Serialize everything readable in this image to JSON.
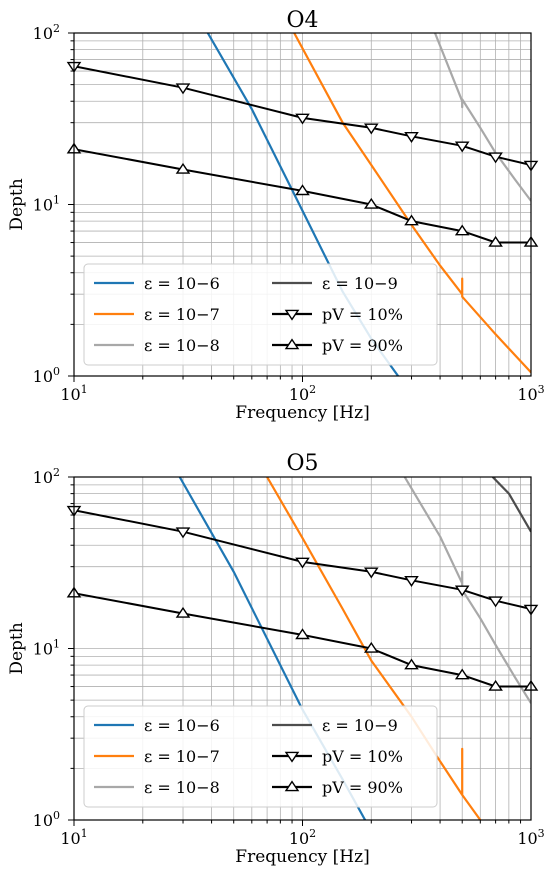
{
  "chart_data": [
    {
      "type": "line",
      "title": "O4",
      "xlabel": "Frequency [Hz]",
      "ylabel": "Depth",
      "xscale": "log",
      "yscale": "log",
      "xlim": [
        10,
        1000
      ],
      "ylim": [
        1,
        100
      ],
      "xticks": [
        {
          "base": "10",
          "exp": "1"
        },
        {
          "base": "10",
          "exp": "2"
        },
        {
          "base": "10",
          "exp": "3"
        }
      ],
      "yticks": [
        {
          "base": "10",
          "exp": "0"
        },
        {
          "base": "10",
          "exp": "1"
        },
        {
          "base": "10",
          "exp": "2"
        }
      ],
      "grid": true,
      "legend_position": "lower-left",
      "series": [
        {
          "name": "ε = 10−6",
          "color": "#1f77b4",
          "x": [
            38.5,
            60,
            100,
            150,
            200,
            262
          ],
          "y": [
            100,
            36,
            9.2,
            3.1,
            1.65,
            1.0
          ]
        },
        {
          "name": "ε = 10−7",
          "color": "#ff7f0e",
          "x": [
            92,
            150,
            200,
            300,
            400,
            500,
            500,
            500,
            700,
            1000
          ],
          "y": [
            100,
            30,
            17,
            7.6,
            4.4,
            3.0,
            3.7,
            2.9,
            1.75,
            1.05
          ]
        },
        {
          "name": "ε = 10−8",
          "color": "#a8a8a8",
          "x": [
            380,
            500,
            500,
            500,
            600,
            700,
            850,
            1000
          ],
          "y": [
            100,
            40,
            37,
            41,
            28,
            20,
            14,
            10.5
          ]
        },
        {
          "name": "ε = 10−9",
          "color": "#4d4d4d",
          "x": [],
          "y": []
        },
        {
          "name": "pV = 10%",
          "marker": "triangle-down",
          "color": "#000000",
          "x": [
            10,
            30,
            100,
            200,
            300,
            500,
            700,
            1000
          ],
          "y": [
            64,
            48,
            32,
            28,
            25,
            22,
            19,
            17
          ]
        },
        {
          "name": "pV = 90%",
          "marker": "triangle-up",
          "color": "#000000",
          "x": [
            10,
            30,
            100,
            200,
            300,
            500,
            700,
            1000
          ],
          "y": [
            21,
            16,
            12,
            10,
            8,
            7,
            6,
            6
          ]
        }
      ]
    },
    {
      "type": "line",
      "title": "O5",
      "xlabel": "Frequency [Hz]",
      "ylabel": "Depth",
      "xscale": "log",
      "yscale": "log",
      "xlim": [
        10,
        1000
      ],
      "ylim": [
        1,
        100
      ],
      "xticks": [
        {
          "base": "10",
          "exp": "1"
        },
        {
          "base": "10",
          "exp": "2"
        },
        {
          "base": "10",
          "exp": "3"
        }
      ],
      "yticks": [
        {
          "base": "10",
          "exp": "0"
        },
        {
          "base": "10",
          "exp": "1"
        },
        {
          "base": "10",
          "exp": "2"
        }
      ],
      "grid": true,
      "legend_position": "lower-left",
      "series": [
        {
          "name": "ε = 10−6",
          "color": "#1f77b4",
          "x": [
            29,
            50,
            100,
            150,
            188
          ],
          "y": [
            100,
            28,
            4.4,
            1.72,
            1.0
          ]
        },
        {
          "name": "ε = 10−7",
          "color": "#ff7f0e",
          "x": [
            70,
            100,
            150,
            200,
            300,
            400,
            500,
            500,
            500,
            600
          ],
          "y": [
            100,
            44,
            17,
            8.5,
            4.0,
            2.2,
            1.4,
            2.6,
            1.4,
            1.0
          ]
        },
        {
          "name": "ε = 10−8",
          "color": "#a8a8a8",
          "x": [
            280,
            400,
            500,
            500,
            500,
            600,
            700,
            850,
            1000
          ],
          "y": [
            100,
            45,
            24,
            28,
            22,
            15,
            10.5,
            6.8,
            4.8
          ]
        },
        {
          "name": "ε = 10−9",
          "color": "#4d4d4d",
          "x": [
            680,
            800,
            1000
          ],
          "y": [
            100,
            80,
            48
          ]
        },
        {
          "name": "pV = 10%",
          "marker": "triangle-down",
          "color": "#000000",
          "x": [
            10,
            30,
            100,
            200,
            300,
            500,
            700,
            1000
          ],
          "y": [
            64,
            48,
            32,
            28,
            25,
            22,
            19,
            17
          ]
        },
        {
          "name": "pV = 90%",
          "marker": "triangle-up",
          "color": "#000000",
          "x": [
            10,
            30,
            100,
            200,
            300,
            500,
            700,
            1000
          ],
          "y": [
            21,
            16,
            12,
            10,
            8,
            7,
            6,
            6
          ]
        }
      ]
    }
  ]
}
